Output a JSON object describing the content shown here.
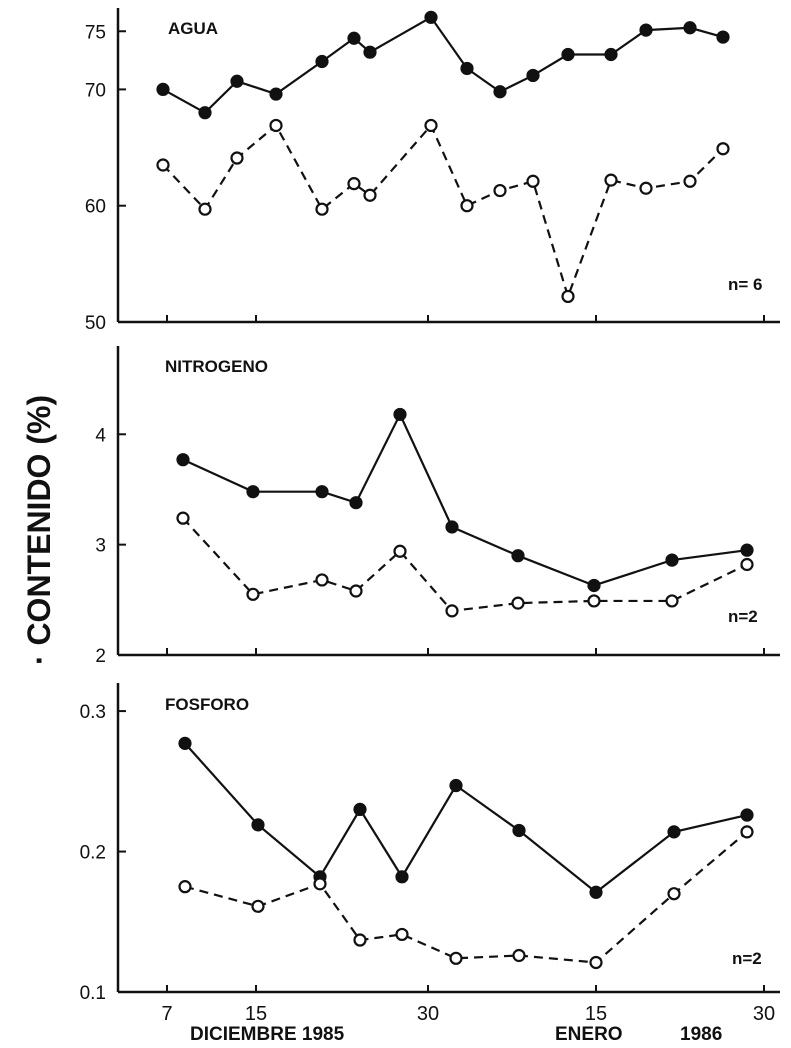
{
  "ylabel": "· CONTENIDO (%)",
  "x_axis": {
    "ticks": [
      "7",
      "15",
      "30",
      "15",
      "30"
    ],
    "labels": [
      "DICIEMBRE 1985",
      "ENERO",
      "1986"
    ]
  },
  "colors": {
    "ink": "#111111",
    "paper": "#ffffff"
  },
  "chart_data": [
    {
      "type": "line",
      "title": "AGUA",
      "annotation": "n= 6",
      "ylim": [
        50,
        77
      ],
      "yticks": [
        50,
        60,
        70,
        75
      ],
      "series": [
        {
          "style": "filled-solid",
          "x": [
            1,
            2,
            3,
            4,
            5,
            6,
            7,
            8,
            9,
            10,
            11,
            12,
            13,
            14,
            15,
            16
          ],
          "values": [
            70,
            68,
            70.7,
            69.6,
            72.4,
            74.4,
            73.2,
            76.2,
            71.8,
            69.8,
            71.2,
            73,
            73,
            75.1,
            75.3,
            74.5
          ]
        },
        {
          "style": "open-dashed",
          "x": [
            1,
            2,
            3,
            4,
            5,
            6,
            7,
            8,
            9,
            10,
            11,
            12,
            13,
            14,
            15,
            16
          ],
          "values": [
            63.5,
            59.7,
            64.1,
            66.9,
            59.7,
            61.9,
            60.9,
            66.9,
            60,
            61.3,
            62.1,
            52.2,
            62.2,
            61.5,
            62.1,
            64.9
          ]
        }
      ]
    },
    {
      "type": "line",
      "title": "NITROGENO",
      "annotation": "n=2",
      "ylim": [
        2,
        4.8
      ],
      "yticks": [
        2,
        3,
        4
      ],
      "series": [
        {
          "style": "filled-solid",
          "x": [
            1,
            2,
            3,
            4,
            5,
            6,
            7,
            8,
            9,
            10
          ],
          "values": [
            3.77,
            3.48,
            3.48,
            3.38,
            4.18,
            3.16,
            2.9,
            2.63,
            2.86,
            2.95
          ]
        },
        {
          "style": "open-dashed",
          "x": [
            1,
            2,
            3,
            4,
            5,
            6,
            7,
            8,
            9,
            10
          ],
          "values": [
            3.24,
            2.55,
            2.68,
            2.58,
            2.94,
            2.4,
            2.47,
            2.49,
            2.49,
            2.82
          ]
        }
      ]
    },
    {
      "type": "line",
      "title": "FOSFORO",
      "annotation": "n=2",
      "ylim": [
        0.1,
        0.32
      ],
      "yticks": [
        0.1,
        0.2,
        0.3
      ],
      "series": [
        {
          "style": "filled-solid",
          "x": [
            1,
            2,
            3,
            4,
            5,
            6,
            7,
            8,
            9,
            10
          ],
          "values": [
            0.277,
            0.219,
            0.182,
            0.23,
            0.182,
            0.247,
            0.215,
            0.171,
            0.214,
            0.226
          ]
        },
        {
          "style": "open-dashed",
          "x": [
            1,
            2,
            3,
            4,
            5,
            6,
            7,
            8,
            9,
            10
          ],
          "values": [
            0.175,
            0.161,
            0.177,
            0.137,
            0.141,
            0.124,
            0.126,
            0.121,
            0.17,
            0.214
          ]
        }
      ]
    }
  ]
}
